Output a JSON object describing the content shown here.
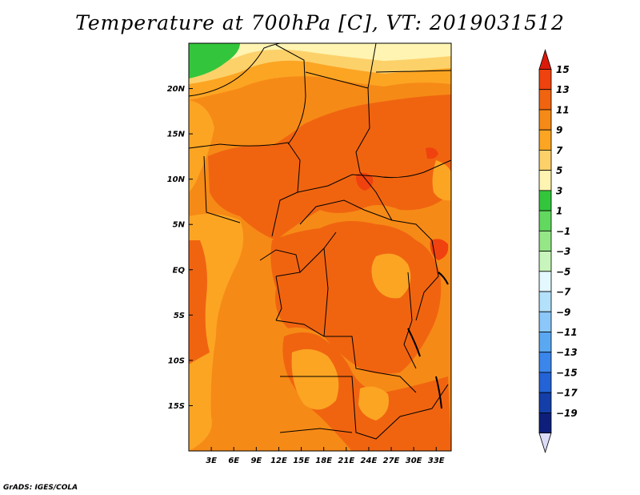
{
  "title": "Temperature at 700hPa [C], VT: 2019031512",
  "credit": "GrADS: IGES/COLA",
  "map": {
    "region": "Central Africa",
    "lon_range": [
      0,
      35
    ],
    "lat_range": [
      -20,
      25
    ],
    "lon_ticks": [
      {
        "value": 3,
        "label": "3E"
      },
      {
        "value": 6,
        "label": "6E"
      },
      {
        "value": 9,
        "label": "9E"
      },
      {
        "value": 12,
        "label": "12E"
      },
      {
        "value": 15,
        "label": "15E"
      },
      {
        "value": 18,
        "label": "18E"
      },
      {
        "value": 21,
        "label": "21E"
      },
      {
        "value": 24,
        "label": "24E"
      },
      {
        "value": 27,
        "label": "27E"
      },
      {
        "value": 30,
        "label": "30E"
      },
      {
        "value": 33,
        "label": "33E"
      }
    ],
    "lat_ticks": [
      {
        "value": 20,
        "label": "20N"
      },
      {
        "value": 15,
        "label": "15N"
      },
      {
        "value": 10,
        "label": "10N"
      },
      {
        "value": 5,
        "label": "5N"
      },
      {
        "value": 0,
        "label": "EQ"
      },
      {
        "value": -5,
        "label": "5S"
      },
      {
        "value": -10,
        "label": "10S"
      },
      {
        "value": -15,
        "label": "15S"
      }
    ]
  },
  "colorbar": {
    "levels": [
      15,
      13,
      11,
      9,
      7,
      5,
      3,
      1,
      -1,
      -3,
      -5,
      -7,
      -9,
      -11,
      -13,
      -15,
      -17,
      -19
    ],
    "labels": [
      "15",
      "13",
      "11",
      "9",
      "7",
      "5",
      "3",
      "1",
      "−1",
      "−3",
      "−5",
      "−7",
      "−9",
      "−11",
      "−13",
      "−15",
      "−17",
      "−19"
    ],
    "colors": [
      "#e8220c",
      "#f0420e",
      "#f06410",
      "#f68a16",
      "#fca523",
      "#fdd16a",
      "#fff4b1",
      "#33c63c",
      "#62d85f",
      "#94e686",
      "#c7f5bb",
      "#e3f8ff",
      "#b3e0fb",
      "#8bc7f8",
      "#5aa8f1",
      "#3b86eb",
      "#2363d6",
      "#143fa8",
      "#0d1f7a"
    ],
    "top_color": "#dc1a0a",
    "bottom_color": "#dcdcf8"
  }
}
